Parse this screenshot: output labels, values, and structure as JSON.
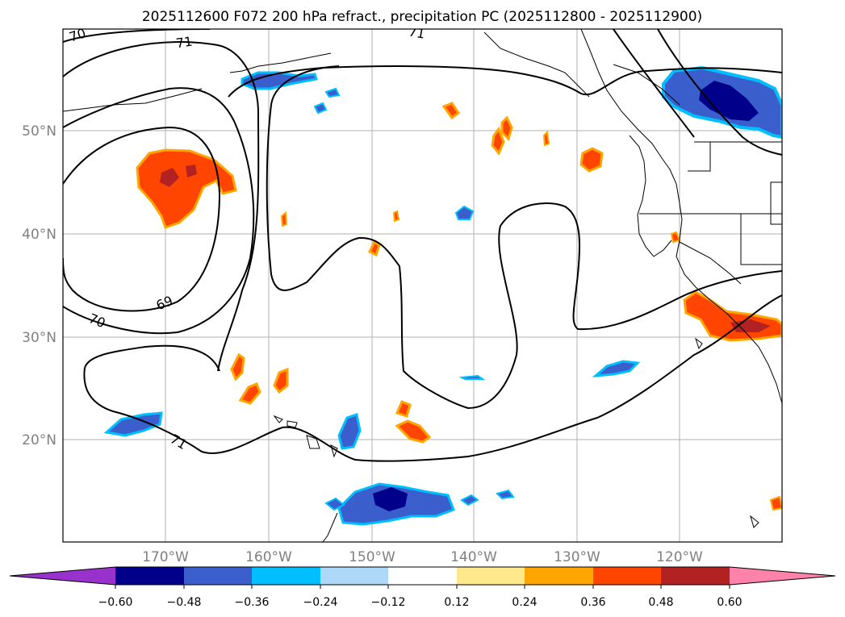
{
  "title": "2025112600 F072 200 hPa refract., precipitation PC (2025112800 - 2025112900)",
  "lat_labels": [
    "50°N",
    "40°N",
    "30°N",
    "20°N"
  ],
  "lon_labels": [
    "170°W",
    "160°W",
    "150°W",
    "140°W",
    "130°W",
    "120°W"
  ],
  "contour_labels": [
    "70",
    "71",
    "71",
    "69",
    "70",
    "71"
  ],
  "colorbar": {
    "tick_labels": [
      "−0.60",
      "−0.48",
      "−0.36",
      "−0.24",
      "−0.12",
      "0.12",
      "0.24",
      "0.36",
      "0.48",
      "0.60"
    ],
    "colors": [
      "#9932cc",
      "#00008b",
      "#3a5fcd",
      "#00bfff",
      "#add8f7",
      "#ffffff",
      "#ffe98c",
      "#ffa500",
      "#ff4500",
      "#b22222",
      "#ff82ab"
    ]
  }
}
